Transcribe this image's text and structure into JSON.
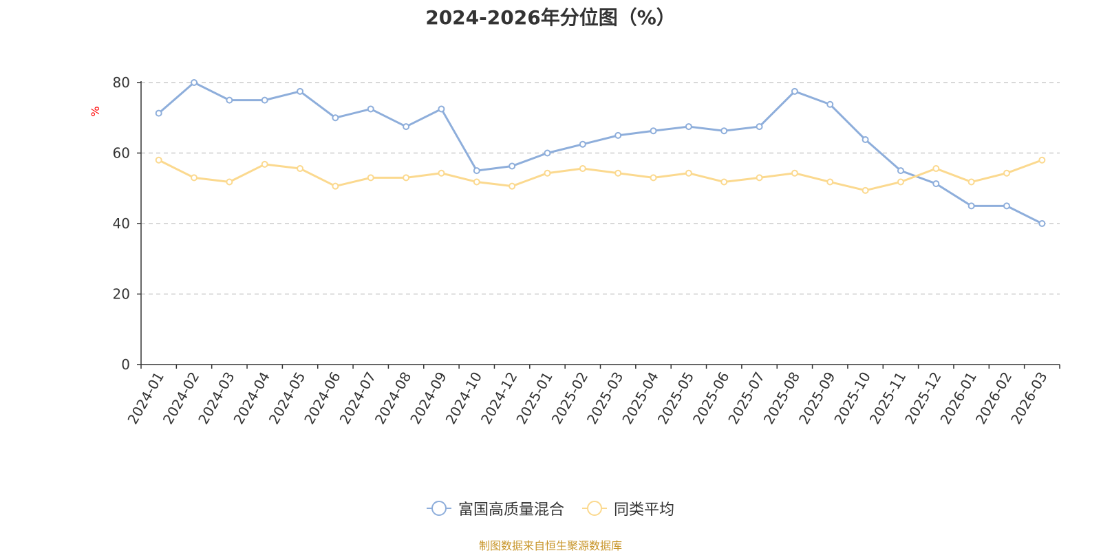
{
  "chart_data": {
    "type": "line",
    "title": "2024-2026年分位图（%）",
    "ylabel": "%",
    "xlabel": "",
    "ylim": [
      0,
      80
    ],
    "yticks": [
      0,
      20,
      40,
      60,
      80
    ],
    "grid": "horizontal dashed",
    "legend_position": "bottom-center",
    "categories": [
      "2024-01",
      "2024-02",
      "2024-03",
      "2024-04",
      "2024-05",
      "2024-06",
      "2024-07",
      "2024-08",
      "2024-09",
      "2024-10",
      "2024-12",
      "2025-01",
      "2025-02",
      "2025-03",
      "2025-04",
      "2025-05",
      "2025-06",
      "2025-07",
      "2025-08",
      "2025-09",
      "2025-10",
      "2025-11",
      "2025-12",
      "2026-01",
      "2026-02",
      "2026-03"
    ],
    "series": [
      {
        "name": "富国高质量混合",
        "color": "#8eaedb",
        "values": [
          71.3,
          80.0,
          75.0,
          75.0,
          77.5,
          70.0,
          72.5,
          67.5,
          72.5,
          55.0,
          56.3,
          60.0,
          62.5,
          65.0,
          66.3,
          67.5,
          66.3,
          67.5,
          77.5,
          73.8,
          63.8,
          55.0,
          51.3,
          45.0,
          45.0,
          40.0
        ]
      },
      {
        "name": "同类平均",
        "color": "#fbd98f",
        "values": [
          58.0,
          53.0,
          51.8,
          56.8,
          55.6,
          50.6,
          53.0,
          53.0,
          54.3,
          51.8,
          50.6,
          54.3,
          55.6,
          54.3,
          53.0,
          54.3,
          51.8,
          53.0,
          54.3,
          51.8,
          49.4,
          51.8,
          55.6,
          51.8,
          54.3,
          58.0
        ]
      }
    ]
  },
  "source_note": "制图数据来自恒生聚源数据库"
}
